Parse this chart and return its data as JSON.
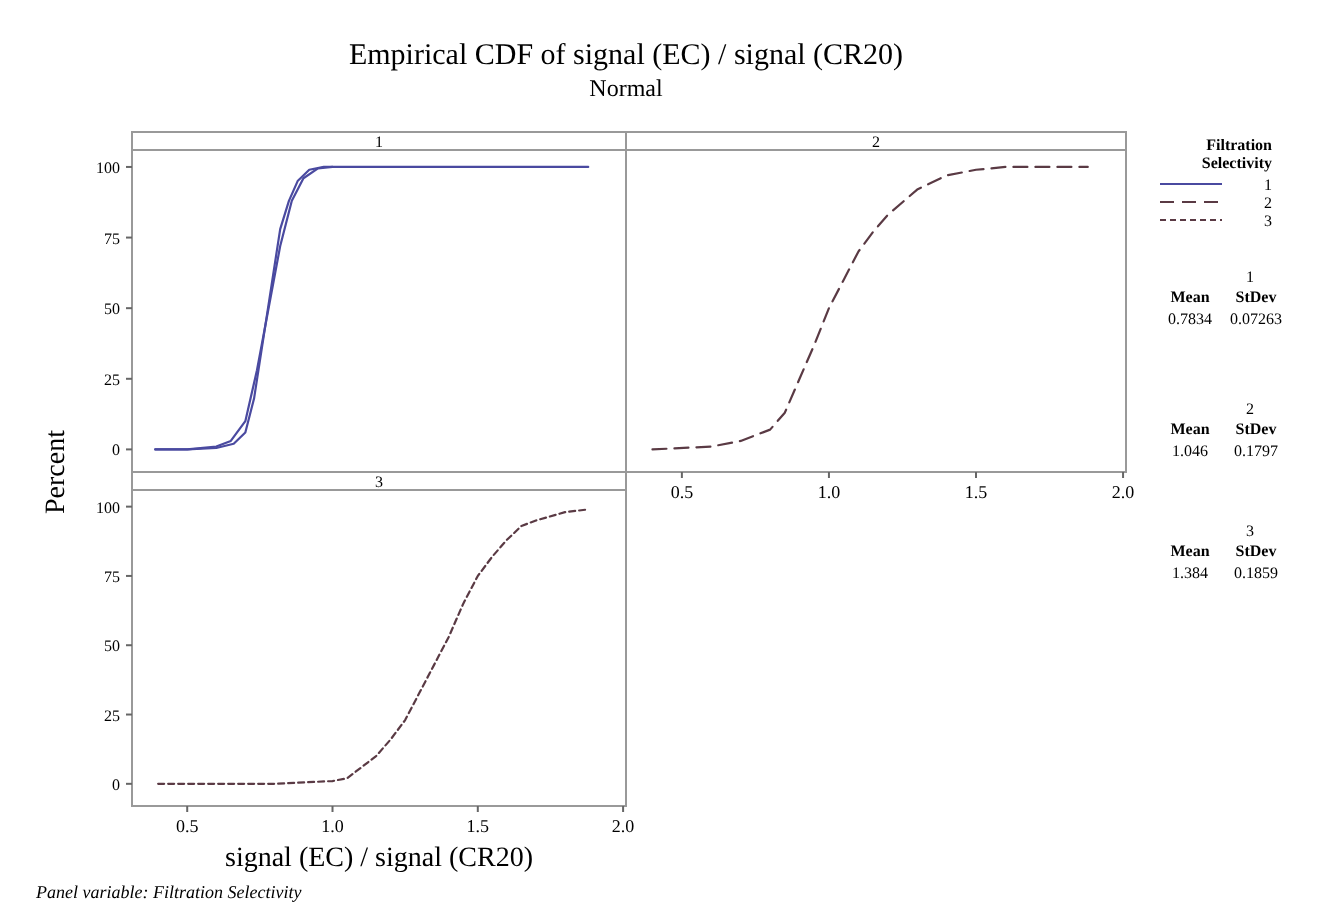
{
  "chart_data": [
    {
      "type": "line",
      "title": "Empirical CDF of signal (EC) / signal (CR20)",
      "subtitle": "Normal",
      "ylabel": "Percent",
      "legend": "right",
      "legend_title": "Filtration Selectivity",
      "tick_labels": "y",
      "xlim": [
        0.31,
        2.01
      ],
      "ylim": [
        -8,
        106
      ],
      "yticks": [
        0,
        25,
        50,
        75,
        100
      ],
      "annotations": [
        "1",
        "1",
        "Mean",
        "StDev",
        "0.7834",
        "0.07263",
        "Panel variable: Filtration Selectivity"
      ],
      "series": [
        {
          "name": "1",
          "color": "#4a4aa0",
          "line_style": "solid",
          "x": [
            0.39,
            0.5,
            0.6,
            0.65,
            0.7,
            0.74,
            0.78,
            0.82,
            0.86,
            0.9,
            0.95,
            1.0,
            1.88
          ],
          "values": [
            0,
            0,
            1,
            3,
            10,
            28,
            50,
            72,
            88,
            96,
            99.5,
            100,
            100
          ]
        },
        {
          "color": "#4a4aa0",
          "line_style": "solid",
          "x": [
            0.39,
            0.5,
            0.6,
            0.66,
            0.7,
            0.73,
            0.76,
            0.79,
            0.82,
            0.85,
            0.88,
            0.92,
            0.97,
            1.0
          ],
          "values": [
            0,
            0,
            0.5,
            2,
            6,
            18,
            38,
            58,
            78,
            88,
            95,
            99,
            100,
            100
          ]
        }
      ]
    },
    {
      "type": "line",
      "legend": "right",
      "tick_labels": "x",
      "xlim": [
        0.31,
        2.01
      ],
      "ylim": [
        -8,
        106
      ],
      "xticks": [
        {
          "value": 0.5,
          "label": "0.5"
        },
        {
          "value": 1,
          "label": "1.0"
        },
        {
          "value": 1.5,
          "label": "1.5"
        },
        {
          "value": 2,
          "label": "2.0"
        }
      ],
      "annotations": [
        "2",
        "2",
        "Mean",
        "StDev",
        "1.046",
        "0.1797"
      ],
      "series": [
        {
          "name": "2",
          "color": "#5a3a44",
          "line_style": "dashed",
          "x": [
            0.4,
            0.6,
            0.7,
            0.8,
            0.85,
            0.9,
            0.95,
            1.0,
            1.05,
            1.1,
            1.15,
            1.2,
            1.3,
            1.4,
            1.5,
            1.6,
            1.88
          ],
          "values": [
            0,
            1,
            3,
            7,
            13,
            25,
            37,
            50,
            60,
            70,
            77,
            83,
            92,
            97,
            99,
            100,
            100
          ]
        }
      ]
    },
    {
      "type": "line",
      "xlabel": "signal (EC) / signal (CR20)",
      "legend": "right",
      "xlim": [
        0.31,
        2.01
      ],
      "ylim": [
        -8,
        106
      ],
      "yticks": [
        0,
        25,
        50,
        75,
        100
      ],
      "xticks": [
        {
          "value": 0.5,
          "label": "0.5"
        },
        {
          "value": 1,
          "label": "1.0"
        },
        {
          "value": 1.5,
          "label": "1.5"
        },
        {
          "value": 2,
          "label": "2.0"
        }
      ],
      "annotations": [
        "3",
        "3",
        "Mean",
        "StDev",
        "1.384",
        "0.1859"
      ],
      "series": [
        {
          "name": "3",
          "color": "#5a3a44",
          "line_style": "dotted",
          "x": [
            0.4,
            0.8,
            1.0,
            1.05,
            1.1,
            1.15,
            1.2,
            1.25,
            1.3,
            1.35,
            1.4,
            1.45,
            1.5,
            1.55,
            1.6,
            1.65,
            1.7,
            1.8,
            1.88
          ],
          "values": [
            0,
            0,
            1,
            2,
            6,
            10,
            16,
            23,
            33,
            43,
            53,
            65,
            75,
            82,
            88,
            93,
            95,
            98,
            99
          ]
        }
      ]
    }
  ]
}
